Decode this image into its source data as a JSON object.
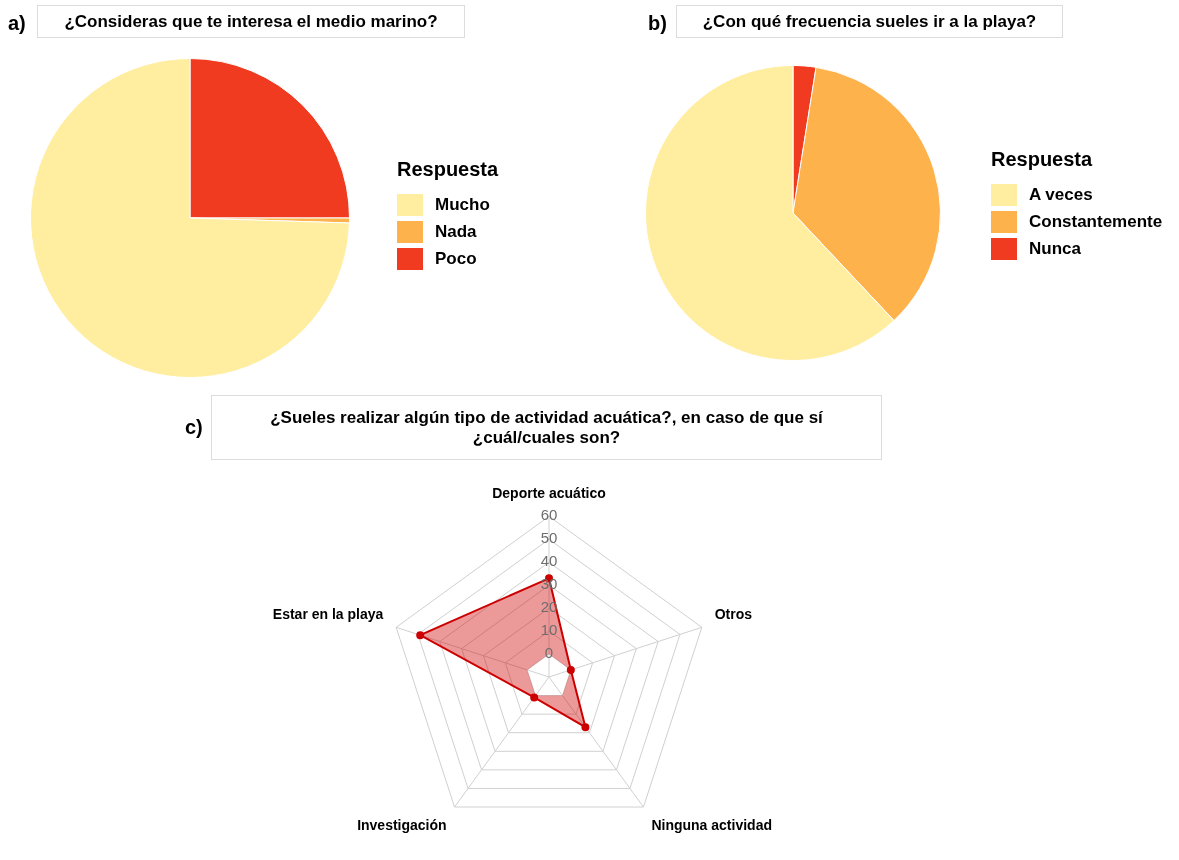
{
  "chart_data": [
    {
      "type": "pie",
      "title": "¿Consideras que te interesa el medio marino?",
      "annotations": [
        "a)"
      ],
      "categories": [
        "Mucho",
        "Nada",
        "Poco"
      ],
      "values": [
        74.5,
        0.5,
        25
      ],
      "colors": [
        "#ffeda0",
        "#feb24c",
        "#f03b20"
      ],
      "legend": "right",
      "legend_title": "Respuesta"
    },
    {
      "type": "pie",
      "title": "¿Con qué frecuencia sueles ir a la playa?",
      "annotations": [
        "b)"
      ],
      "categories": [
        "A veces",
        "Constantemente",
        "Nunca"
      ],
      "values": [
        62,
        35.5,
        2.5
      ],
      "colors": [
        "#ffeda0",
        "#feb24c",
        "#f03b20"
      ],
      "legend": "right",
      "legend_title": "Respuesta"
    },
    {
      "type": "radar",
      "title": "¿Sueles realizar algún tipo de actividad acuática?, en caso de que sí ¿cuál/cuales son?",
      "annotations": [
        "c)"
      ],
      "categories": [
        "Deporte acuático",
        "Otros",
        "Ninguna actividad",
        "Investigación",
        "Estar en la playa"
      ],
      "series": [
        {
          "color": "#cc0000",
          "values": [
            33,
            0,
            17,
            1,
            49
          ]
        }
      ],
      "ylim": [
        -10,
        60
      ],
      "yticks": [
        0,
        10,
        20,
        30,
        40,
        50,
        60
      ],
      "grid": true,
      "marker": "circle",
      "legend": false
    }
  ]
}
